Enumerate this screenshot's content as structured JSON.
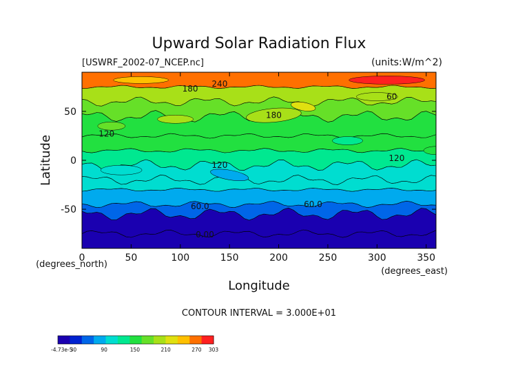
{
  "chart_data": {
    "type": "heatmap",
    "title": "Upward Solar Radiation Flux",
    "subtitle_left": "[USWRF_2002-07_NCEP.nc]",
    "subtitle_right": "(units:W/m^2)",
    "xlabel": "Longitude",
    "ylabel": "Latitude",
    "x_unit_label": "(degrees_east)",
    "y_unit_label": "(degrees_north)",
    "xlim": [
      0,
      360
    ],
    "ylim": [
      -90,
      90
    ],
    "x_ticks": [
      0,
      50,
      100,
      150,
      200,
      250,
      300,
      350
    ],
    "y_ticks": [
      -50,
      0,
      50
    ],
    "contour_interval_text": "CONTOUR INTERVAL = 3.000E+01",
    "contour_labels": [
      {
        "text": "180",
        "x": 110,
        "y": 73
      },
      {
        "text": "240",
        "x": 140,
        "y": 78
      },
      {
        "text": "180",
        "x": 195,
        "y": 46
      },
      {
        "text": "60",
        "x": 315,
        "y": 65
      },
      {
        "text": "120",
        "x": 25,
        "y": 27
      },
      {
        "text": "120",
        "x": 140,
        "y": -5
      },
      {
        "text": "120",
        "x": 320,
        "y": 2
      },
      {
        "text": "60.0",
        "x": 120,
        "y": -47
      },
      {
        "text": "60.0",
        "x": 235,
        "y": -45
      },
      {
        "text": "0.00",
        "x": 125,
        "y": -76
      }
    ],
    "colorbar": {
      "tick_labels": [
        "-4.73e-5",
        "30",
        "90",
        "150",
        "210",
        "270",
        "303"
      ],
      "tick_values": [
        0,
        30,
        90,
        150,
        210,
        270,
        303
      ],
      "range": [
        0,
        303
      ],
      "colors": [
        "#1a00b0",
        "#0022d0",
        "#0066e8",
        "#00aaee",
        "#00ddd0",
        "#00e890",
        "#22e040",
        "#66e028",
        "#a8e018",
        "#e0e010",
        "#ffc000",
        "#ff7000",
        "#ff2020"
      ]
    },
    "latitude_bands": [
      {
        "lat": [
          -90,
          -75
        ],
        "value": 8
      },
      {
        "lat": [
          -75,
          -55
        ],
        "value": 22
      },
      {
        "lat": [
          -55,
          -45
        ],
        "value": 48
      },
      {
        "lat": [
          -45,
          -30
        ],
        "value": 72
      },
      {
        "lat": [
          -30,
          -20
        ],
        "value": 98
      },
      {
        "lat": [
          -20,
          -5
        ],
        "value": 110
      },
      {
        "lat": [
          -5,
          10
        ],
        "value": 122
      },
      {
        "lat": [
          10,
          25
        ],
        "value": 140
      },
      {
        "lat": [
          25,
          45
        ],
        "value": 158
      },
      {
        "lat": [
          45,
          60
        ],
        "value": 170
      },
      {
        "lat": [
          60,
          75
        ],
        "value": 200
      },
      {
        "lat": [
          75,
          90
        ],
        "value": 265
      }
    ]
  }
}
